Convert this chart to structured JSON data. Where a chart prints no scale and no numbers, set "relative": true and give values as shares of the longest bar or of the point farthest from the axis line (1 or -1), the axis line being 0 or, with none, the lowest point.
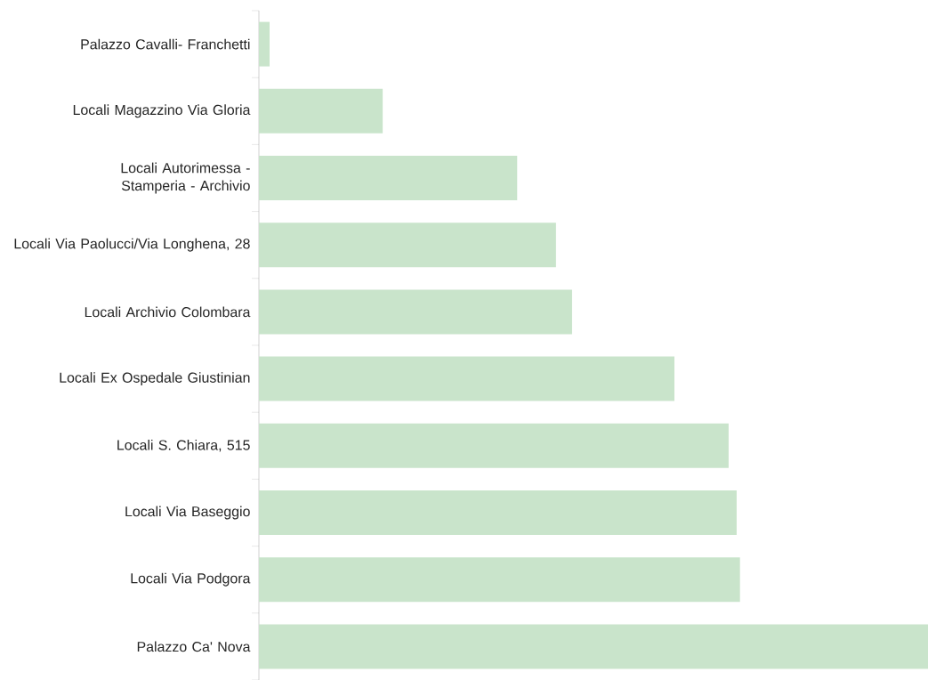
{
  "chart_data": {
    "type": "bar",
    "orientation": "horizontal",
    "relative": true,
    "categories": [
      "Palazzo Cavalli- Franchetti",
      "Locali Magazzino Via Gloria",
      "Locali Autorimessa - Stamperia - Archivio",
      "Locali Via Paolucci/Via Longhena, 28",
      "Locali Archivio Colombara",
      "Locali Ex Ospedale Giustinian",
      "Locali S. Chiara, 515",
      "Locali Via Baseggio",
      "Locali Via Podgora",
      "Palazzo Ca' Nova"
    ],
    "values": [
      0.016,
      0.185,
      0.386,
      0.444,
      0.468,
      0.621,
      0.702,
      0.714,
      0.719,
      1.0
    ],
    "color": "#c9e4cb"
  }
}
